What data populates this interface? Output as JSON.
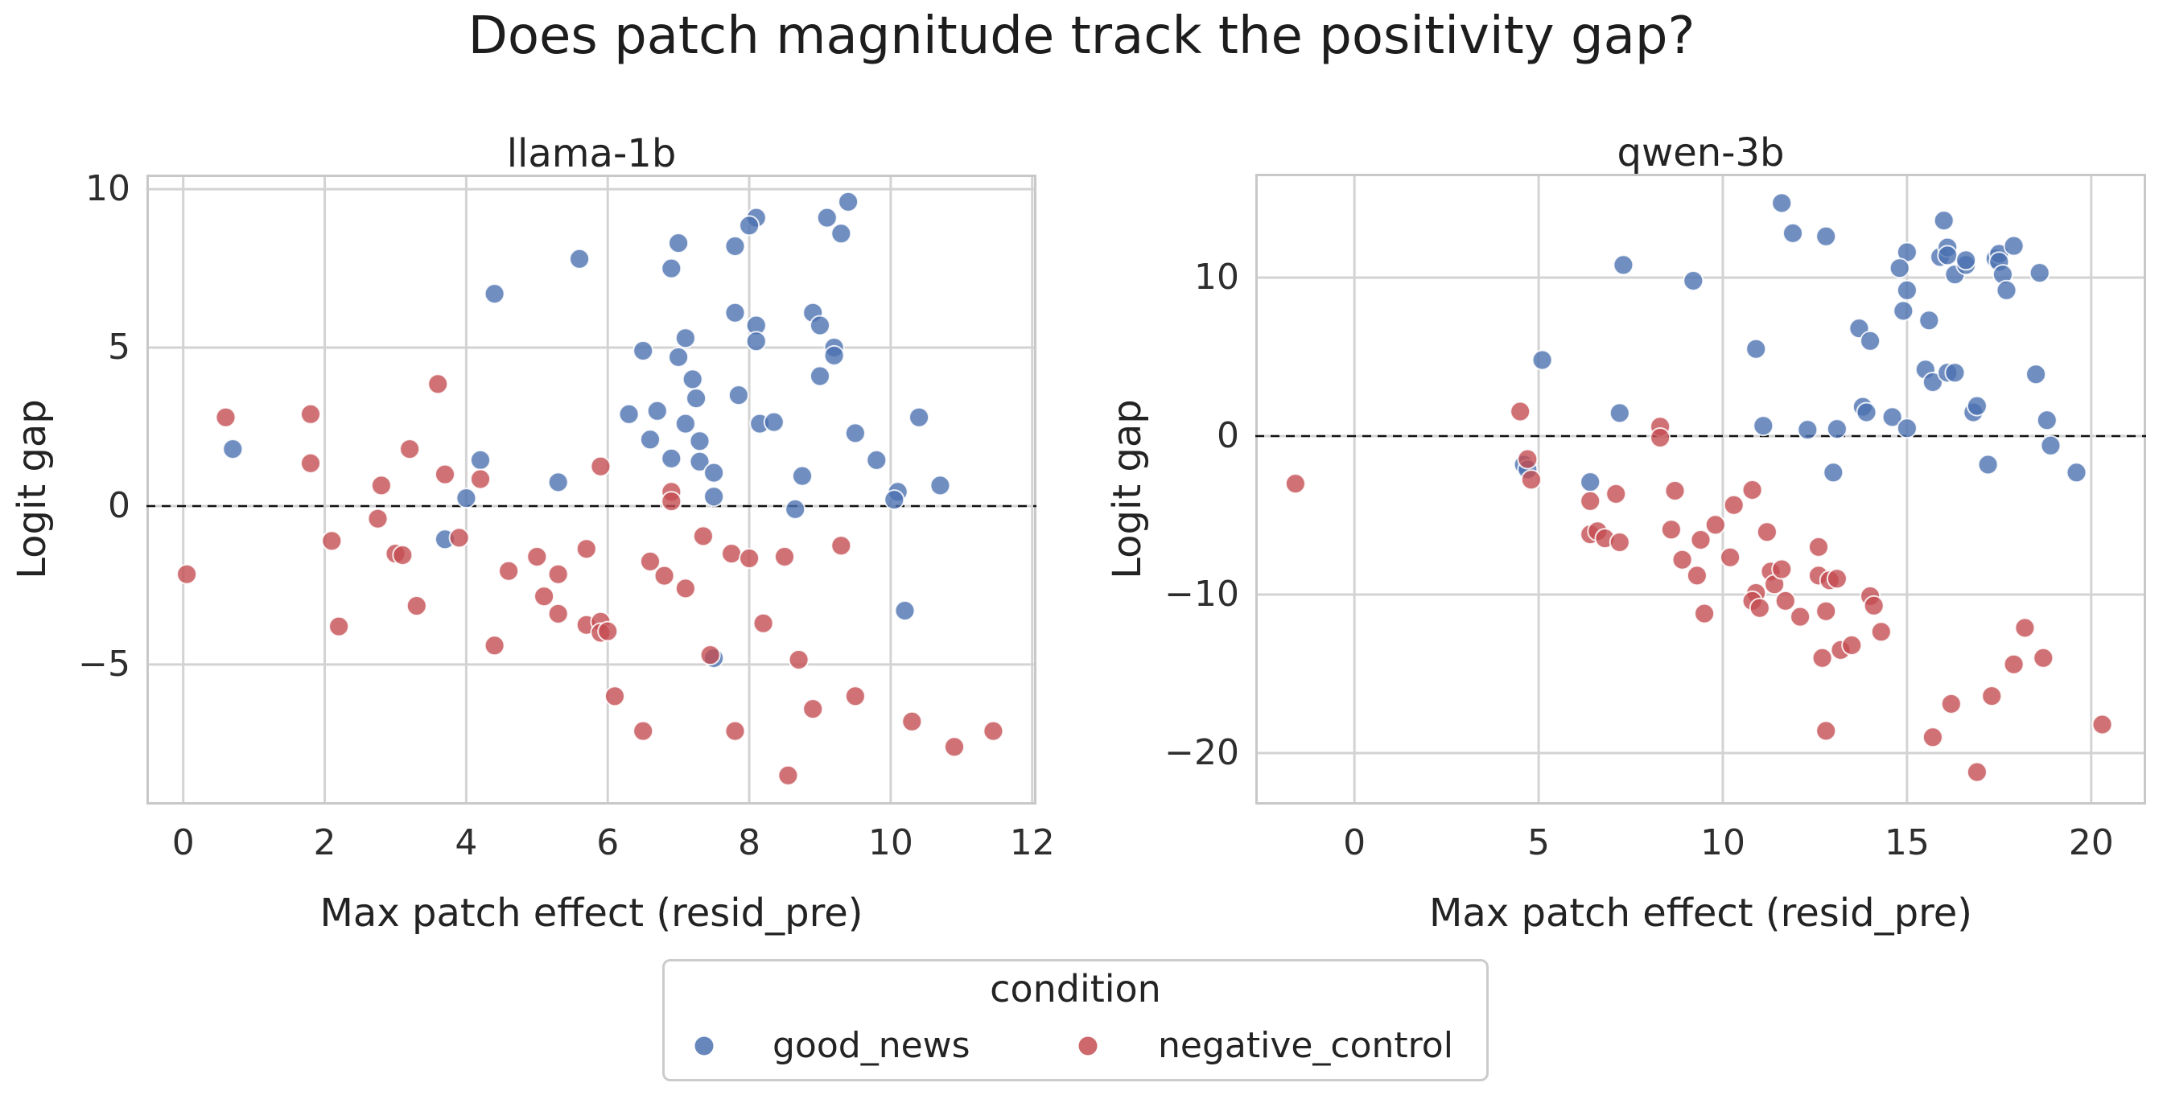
{
  "title": "Does patch magnitude track the positivity gap?",
  "colors": {
    "good_news": "#4C72B0",
    "negative_control": "#C44E52",
    "grid": "#D3D3D3",
    "spine": "#C8C8C8",
    "zero_line": "#111111",
    "text": "#232323"
  },
  "legend": {
    "title": "condition",
    "items": [
      {
        "label": "good_news",
        "color": "#4C72B0"
      },
      {
        "label": "negative_control",
        "color": "#C44E52"
      }
    ]
  },
  "chart_data": [
    {
      "type": "scatter",
      "title": "llama-1b",
      "xlabel": "Max patch effect (resid_pre)",
      "ylabel": "Logit gap",
      "xlim": [
        -0.52,
        12.06
      ],
      "ylim": [
        -9.42,
        10.46
      ],
      "xticks": {
        "values": [
          0,
          2,
          4,
          6,
          8,
          10,
          12
        ],
        "labels": [
          "0",
          "2",
          "4",
          "6",
          "8",
          "10",
          "12"
        ]
      },
      "yticks": {
        "values": [
          10,
          5,
          0,
          -5
        ],
        "labels": [
          "10",
          "5",
          "0",
          "−5"
        ]
      },
      "zero_line_y": 0,
      "grid": true,
      "legend_position": "figure-bottom",
      "series": [
        {
          "name": "good_news",
          "color": "#4C72B0",
          "points": [
            [
              9.4,
              9.6
            ],
            [
              8.1,
              9.1
            ],
            [
              9.1,
              9.1
            ],
            [
              8.0,
              8.85
            ],
            [
              9.3,
              8.6
            ],
            [
              7.0,
              8.3
            ],
            [
              7.8,
              8.2
            ],
            [
              5.6,
              7.8
            ],
            [
              6.9,
              7.5
            ],
            [
              4.4,
              6.7
            ],
            [
              7.8,
              6.1
            ],
            [
              8.9,
              6.1
            ],
            [
              8.1,
              5.7
            ],
            [
              9.0,
              5.7
            ],
            [
              7.1,
              5.3
            ],
            [
              8.1,
              5.2
            ],
            [
              9.2,
              5.0
            ],
            [
              9.2,
              4.75
            ],
            [
              6.5,
              4.9
            ],
            [
              7.0,
              4.7
            ],
            [
              9.0,
              4.1
            ],
            [
              7.2,
              4.0
            ],
            [
              7.25,
              3.4
            ],
            [
              7.85,
              3.5
            ],
            [
              6.3,
              2.9
            ],
            [
              6.7,
              3.0
            ],
            [
              7.1,
              2.6
            ],
            [
              8.15,
              2.6
            ],
            [
              8.35,
              2.65
            ],
            [
              10.4,
              2.8
            ],
            [
              6.6,
              2.1
            ],
            [
              7.3,
              2.05
            ],
            [
              9.5,
              2.3
            ],
            [
              0.7,
              1.8
            ],
            [
              6.9,
              1.5
            ],
            [
              7.3,
              1.4
            ],
            [
              4.2,
              1.45
            ],
            [
              9.8,
              1.45
            ],
            [
              7.5,
              1.05
            ],
            [
              8.75,
              0.95
            ],
            [
              5.3,
              0.75
            ],
            [
              7.5,
              0.3
            ],
            [
              4.0,
              0.25
            ],
            [
              10.1,
              0.45
            ],
            [
              10.05,
              0.2
            ],
            [
              10.7,
              0.65
            ],
            [
              8.65,
              -0.1
            ],
            [
              3.7,
              -1.05
            ],
            [
              10.2,
              -3.3
            ],
            [
              7.5,
              -4.8
            ]
          ]
        },
        {
          "name": "negative_control",
          "color": "#C44E52",
          "points": [
            [
              0.6,
              2.8
            ],
            [
              1.8,
              2.9
            ],
            [
              3.6,
              3.85
            ],
            [
              1.8,
              1.35
            ],
            [
              3.2,
              1.8
            ],
            [
              2.8,
              0.65
            ],
            [
              3.7,
              1.0
            ],
            [
              4.2,
              0.85
            ],
            [
              5.9,
              1.25
            ],
            [
              6.9,
              0.45
            ],
            [
              6.9,
              0.15
            ],
            [
              2.75,
              -0.4
            ],
            [
              2.1,
              -1.1
            ],
            [
              3.9,
              -1.0
            ],
            [
              3.0,
              -1.5
            ],
            [
              3.1,
              -1.55
            ],
            [
              7.35,
              -0.95
            ],
            [
              5.7,
              -1.35
            ],
            [
              7.75,
              -1.5
            ],
            [
              8.0,
              -1.65
            ],
            [
              8.5,
              -1.6
            ],
            [
              9.3,
              -1.25
            ],
            [
              4.6,
              -2.05
            ],
            [
              5.0,
              -1.6
            ],
            [
              5.3,
              -2.15
            ],
            [
              6.6,
              -1.75
            ],
            [
              6.8,
              -2.2
            ],
            [
              0.05,
              -2.15
            ],
            [
              7.1,
              -2.6
            ],
            [
              5.1,
              -2.85
            ],
            [
              3.3,
              -3.15
            ],
            [
              5.3,
              -3.4
            ],
            [
              5.7,
              -3.75
            ],
            [
              5.9,
              -3.65
            ],
            [
              5.9,
              -4.0
            ],
            [
              6.0,
              -3.95
            ],
            [
              2.2,
              -3.8
            ],
            [
              8.2,
              -3.7
            ],
            [
              4.4,
              -4.4
            ],
            [
              7.45,
              -4.7
            ],
            [
              8.7,
              -4.85
            ],
            [
              6.1,
              -6.0
            ],
            [
              9.5,
              -6.0
            ],
            [
              8.9,
              -6.4
            ],
            [
              6.5,
              -7.1
            ],
            [
              7.8,
              -7.1
            ],
            [
              10.3,
              -6.8
            ],
            [
              10.9,
              -7.6
            ],
            [
              11.45,
              -7.1
            ],
            [
              8.55,
              -8.5
            ]
          ]
        }
      ]
    },
    {
      "type": "scatter",
      "title": "qwen-3b",
      "xlabel": "Max patch effect (resid_pre)",
      "ylabel": "Logit gap",
      "xlim": [
        -2.69,
        21.49
      ],
      "ylim": [
        -23.25,
        16.55
      ],
      "xticks": {
        "values": [
          0,
          5,
          10,
          15,
          20
        ],
        "labels": [
          "0",
          "5",
          "10",
          "15",
          "20"
        ]
      },
      "yticks": {
        "values": [
          10,
          0,
          -10,
          -20
        ],
        "labels": [
          "10",
          "0",
          "−10",
          "−20"
        ]
      },
      "zero_line_y": 0,
      "grid": true,
      "legend_position": "figure-bottom",
      "series": [
        {
          "name": "good_news",
          "color": "#4C72B0",
          "points": [
            [
              11.6,
              14.7
            ],
            [
              11.9,
              12.8
            ],
            [
              12.8,
              12.6
            ],
            [
              16.0,
              13.6
            ],
            [
              15.0,
              11.6
            ],
            [
              14.8,
              10.6
            ],
            [
              15.9,
              11.3
            ],
            [
              16.1,
              11.9
            ],
            [
              16.1,
              11.4
            ],
            [
              16.3,
              10.2
            ],
            [
              16.6,
              10.8
            ],
            [
              16.6,
              11.1
            ],
            [
              17.4,
              11.2
            ],
            [
              17.5,
              11.5
            ],
            [
              17.5,
              11.0
            ],
            [
              17.6,
              10.2
            ],
            [
              17.9,
              12.0
            ],
            [
              17.7,
              9.2
            ],
            [
              18.6,
              10.3
            ],
            [
              7.3,
              10.8
            ],
            [
              9.2,
              9.8
            ],
            [
              15.0,
              9.2
            ],
            [
              14.9,
              7.9
            ],
            [
              15.6,
              7.3
            ],
            [
              13.7,
              6.8
            ],
            [
              14.0,
              6.0
            ],
            [
              10.9,
              5.5
            ],
            [
              5.1,
              4.8
            ],
            [
              15.5,
              4.2
            ],
            [
              15.7,
              3.4
            ],
            [
              16.1,
              4.0
            ],
            [
              16.3,
              4.0
            ],
            [
              18.5,
              3.9
            ],
            [
              13.8,
              1.85
            ],
            [
              13.9,
              1.5
            ],
            [
              14.6,
              1.2
            ],
            [
              15.0,
              0.5
            ],
            [
              11.1,
              0.65
            ],
            [
              12.3,
              0.4
            ],
            [
              13.1,
              0.45
            ],
            [
              16.8,
              1.5
            ],
            [
              16.9,
              1.9
            ],
            [
              18.8,
              1.0
            ],
            [
              7.2,
              1.45
            ],
            [
              18.9,
              -0.6
            ],
            [
              17.2,
              -1.8
            ],
            [
              13.0,
              -2.3
            ],
            [
              19.6,
              -2.3
            ],
            [
              4.6,
              -1.8
            ],
            [
              4.7,
              -2.1
            ],
            [
              6.4,
              -2.9
            ]
          ]
        },
        {
          "name": "negative_control",
          "color": "#C44E52",
          "points": [
            [
              -1.6,
              -3.0
            ],
            [
              4.5,
              1.55
            ],
            [
              4.7,
              -1.45
            ],
            [
              4.8,
              -2.75
            ],
            [
              6.4,
              -4.1
            ],
            [
              6.4,
              -6.2
            ],
            [
              6.6,
              -6.0
            ],
            [
              6.8,
              -6.45
            ],
            [
              7.1,
              -3.65
            ],
            [
              7.2,
              -6.7
            ],
            [
              8.3,
              0.6
            ],
            [
              8.3,
              -0.1
            ],
            [
              8.7,
              -3.45
            ],
            [
              8.6,
              -5.9
            ],
            [
              8.9,
              -7.8
            ],
            [
              9.3,
              -8.8
            ],
            [
              9.4,
              -6.55
            ],
            [
              9.8,
              -5.6
            ],
            [
              9.5,
              -11.2
            ],
            [
              10.2,
              -7.65
            ],
            [
              10.3,
              -4.35
            ],
            [
              10.8,
              -3.4
            ],
            [
              10.9,
              -9.9
            ],
            [
              10.8,
              -10.4
            ],
            [
              11.0,
              -10.85
            ],
            [
              11.2,
              -6.05
            ],
            [
              11.3,
              -8.55
            ],
            [
              11.4,
              -9.35
            ],
            [
              11.6,
              -8.4
            ],
            [
              11.7,
              -10.4
            ],
            [
              12.1,
              -11.4
            ],
            [
              12.6,
              -7.0
            ],
            [
              12.6,
              -8.8
            ],
            [
              12.7,
              -14.0
            ],
            [
              12.8,
              -18.6
            ],
            [
              12.8,
              -11.05
            ],
            [
              12.9,
              -9.1
            ],
            [
              13.1,
              -9.0
            ],
            [
              13.2,
              -13.5
            ],
            [
              13.5,
              -13.2
            ],
            [
              14.0,
              -10.1
            ],
            [
              14.1,
              -10.7
            ],
            [
              14.3,
              -12.35
            ],
            [
              15.7,
              -19.0
            ],
            [
              16.2,
              -16.9
            ],
            [
              17.3,
              -16.4
            ],
            [
              16.9,
              -21.2
            ],
            [
              18.2,
              -12.1
            ],
            [
              17.9,
              -14.4
            ],
            [
              18.7,
              -14.0
            ],
            [
              20.3,
              -18.2
            ]
          ]
        }
      ]
    }
  ]
}
